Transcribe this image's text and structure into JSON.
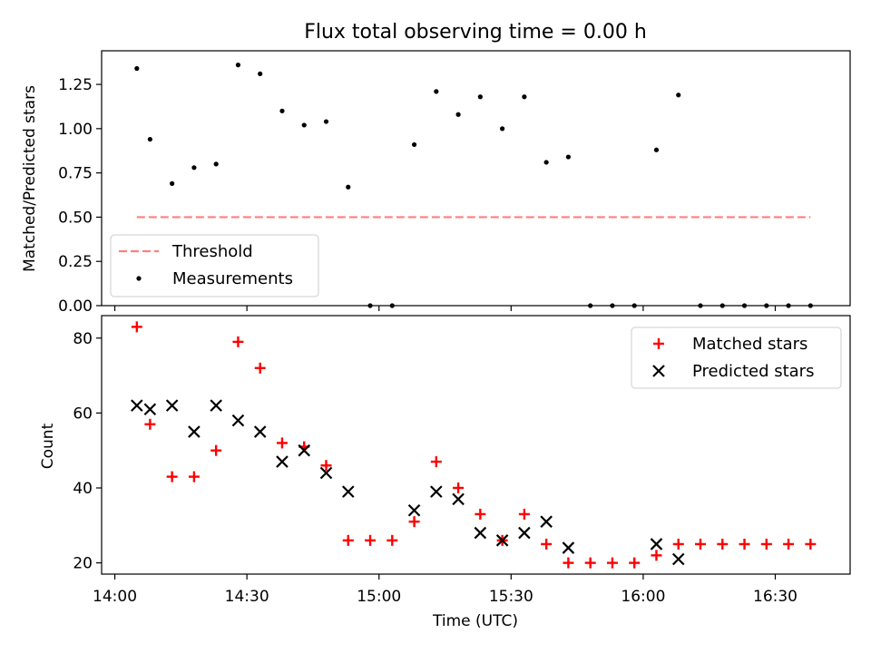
{
  "chart_data": [
    {
      "type": "scatter",
      "title": "Flux total observing time = 0.00 h",
      "xlabel": "",
      "ylabel": "Matched/Predicted stars",
      "xlim": [
        "13:57",
        "16:47"
      ],
      "ylim": [
        0,
        1.44
      ],
      "y_ticks": [
        "0.00",
        "0.25",
        "0.50",
        "0.75",
        "1.00",
        "1.25"
      ],
      "legend_position": "lower-left",
      "threshold": {
        "name": "Threshold",
        "value": 0.5,
        "x_start": "14:05",
        "x_end": "16:38",
        "color": "#ff7f7f"
      },
      "series": [
        {
          "name": "Measurements",
          "color": "#000000",
          "points": [
            [
              "14:05",
              1.34
            ],
            [
              "14:08",
              0.94
            ],
            [
              "14:13",
              0.69
            ],
            [
              "14:18",
              0.78
            ],
            [
              "14:23",
              0.8
            ],
            [
              "14:28",
              1.36
            ],
            [
              "14:33",
              1.31
            ],
            [
              "14:38",
              1.1
            ],
            [
              "14:43",
              1.02
            ],
            [
              "14:48",
              1.04
            ],
            [
              "14:53",
              0.67
            ],
            [
              "14:58",
              0.0
            ],
            [
              "15:03",
              0.0
            ],
            [
              "15:08",
              0.91
            ],
            [
              "15:13",
              1.21
            ],
            [
              "15:18",
              1.08
            ],
            [
              "15:23",
              1.18
            ],
            [
              "15:28",
              1.0
            ],
            [
              "15:33",
              1.18
            ],
            [
              "15:38",
              0.81
            ],
            [
              "15:43",
              0.84
            ],
            [
              "15:48",
              0.0
            ],
            [
              "15:53",
              0.0
            ],
            [
              "15:58",
              0.0
            ],
            [
              "16:03",
              0.88
            ],
            [
              "16:08",
              1.19
            ],
            [
              "16:13",
              0.0
            ],
            [
              "16:18",
              0.0
            ],
            [
              "16:23",
              0.0
            ],
            [
              "16:28",
              0.0
            ],
            [
              "16:33",
              0.0
            ],
            [
              "16:38",
              0.0
            ]
          ]
        }
      ]
    },
    {
      "type": "scatter",
      "title": "",
      "xlabel": "Time (UTC)",
      "ylabel": "Count",
      "xlim": [
        "13:57",
        "16:47"
      ],
      "ylim": [
        17,
        86
      ],
      "x_ticks": [
        "14:00",
        "14:30",
        "15:00",
        "15:30",
        "16:00",
        "16:30"
      ],
      "y_ticks": [
        "20",
        "40",
        "60",
        "80"
      ],
      "legend_position": "upper-right",
      "series": [
        {
          "name": "Matched stars",
          "marker": "+",
          "color": "#ff0000",
          "points": [
            [
              "14:05",
              83
            ],
            [
              "14:08",
              57
            ],
            [
              "14:13",
              43
            ],
            [
              "14:18",
              43
            ],
            [
              "14:23",
              50
            ],
            [
              "14:28",
              79
            ],
            [
              "14:33",
              72
            ],
            [
              "14:38",
              52
            ],
            [
              "14:43",
              51
            ],
            [
              "14:48",
              46
            ],
            [
              "14:53",
              26
            ],
            [
              "14:58",
              26
            ],
            [
              "15:03",
              26
            ],
            [
              "15:08",
              31
            ],
            [
              "15:13",
              47
            ],
            [
              "15:18",
              40
            ],
            [
              "15:23",
              33
            ],
            [
              "15:28",
              26
            ],
            [
              "15:33",
              33
            ],
            [
              "15:38",
              25
            ],
            [
              "15:43",
              20
            ],
            [
              "15:48",
              20
            ],
            [
              "15:53",
              20
            ],
            [
              "15:58",
              20
            ],
            [
              "16:03",
              22
            ],
            [
              "16:08",
              25
            ],
            [
              "16:13",
              25
            ],
            [
              "16:18",
              25
            ],
            [
              "16:23",
              25
            ],
            [
              "16:28",
              25
            ],
            [
              "16:33",
              25
            ],
            [
              "16:38",
              25
            ]
          ]
        },
        {
          "name": "Predicted stars",
          "marker": "x",
          "color": "#000000",
          "points": [
            [
              "14:05",
              62
            ],
            [
              "14:08",
              61
            ],
            [
              "14:13",
              62
            ],
            [
              "14:18",
              55
            ],
            [
              "14:23",
              62
            ],
            [
              "14:28",
              58
            ],
            [
              "14:33",
              55
            ],
            [
              "14:38",
              47
            ],
            [
              "14:43",
              50
            ],
            [
              "14:48",
              44
            ],
            [
              "14:53",
              39
            ],
            [
              "15:08",
              34
            ],
            [
              "15:13",
              39
            ],
            [
              "15:18",
              37
            ],
            [
              "15:23",
              28
            ],
            [
              "15:28",
              26
            ],
            [
              "15:33",
              28
            ],
            [
              "15:38",
              31
            ],
            [
              "15:43",
              24
            ],
            [
              "16:03",
              25
            ],
            [
              "16:08",
              21
            ]
          ]
        }
      ]
    }
  ]
}
